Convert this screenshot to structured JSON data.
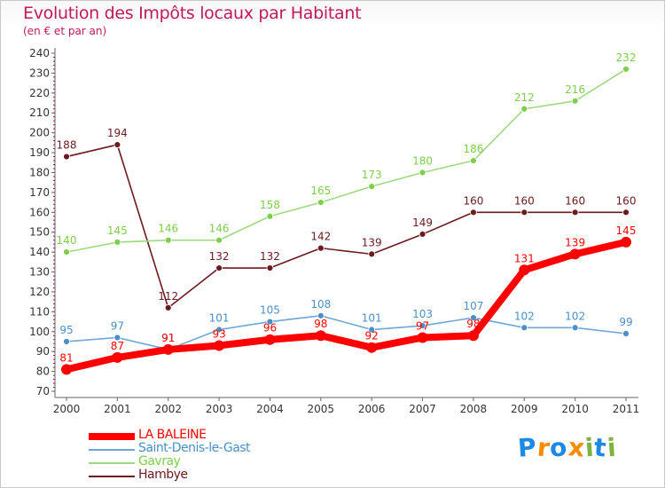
{
  "title": "Evolution des Impôts locaux par Habitant",
  "subtitle": "(en € et par an)",
  "brand": {
    "letters": [
      {
        "ch": "P",
        "color": "#1e88e5"
      },
      {
        "ch": "r",
        "color": "#fb8c00"
      },
      {
        "ch": "o",
        "color": "#1e88e5"
      },
      {
        "ch": "x",
        "color": "#fb8c00"
      },
      {
        "ch": "i",
        "color": "#7cb342"
      },
      {
        "ch": "t",
        "color": "#1e88e5"
      },
      {
        "ch": "i",
        "color": "#7cb342"
      }
    ]
  },
  "chart_data": {
    "type": "line",
    "title": "Evolution des Impôts locaux par Habitant",
    "subtitle": "(en € et par an)",
    "xlabel": "",
    "ylabel": "",
    "ylim": [
      70,
      240
    ],
    "ytick_step": 10,
    "grid": false,
    "legend_position": "bottom-left",
    "x": [
      "2000",
      "2001",
      "2002",
      "2003",
      "2004",
      "2005",
      "2006",
      "2007",
      "2008",
      "2009",
      "2010",
      "2011"
    ],
    "series": [
      {
        "name": "Hambye",
        "color": "#6b1a1e",
        "marker": "#6b1a1e",
        "text_color": "#6b1a1e",
        "legend_order": 3,
        "values": [
          188,
          194,
          112,
          132,
          132,
          142,
          139,
          149,
          160,
          160,
          160,
          160
        ]
      },
      {
        "name": "Gavray",
        "color": "#9fd97f",
        "marker": "#7ccf4a",
        "text_color": "#7ccf4a",
        "legend_order": 2,
        "values": [
          140,
          145,
          146,
          146,
          158,
          165,
          173,
          180,
          186,
          212,
          216,
          232
        ]
      },
      {
        "name": "Saint-Denis-le-Gast",
        "color": "#6ea6d6",
        "marker": "#4a8fc9",
        "text_color": "#4a8fc9",
        "legend_order": 1,
        "values": [
          95,
          97,
          91,
          101,
          105,
          108,
          101,
          103,
          107,
          102,
          102,
          99
        ]
      },
      {
        "name": "LA BALEINE",
        "color": "#ff0000",
        "marker": "#ff0000",
        "text_color": "#ff0000",
        "legend_order": 0,
        "values": [
          81,
          87,
          91,
          93,
          96,
          98,
          92,
          97,
          98,
          131,
          139,
          145
        ]
      }
    ]
  }
}
